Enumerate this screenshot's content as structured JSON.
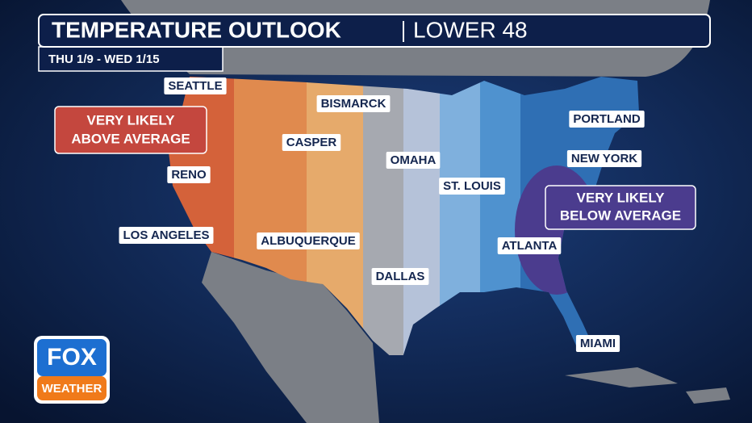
{
  "header": {
    "title": "TEMPERATURE OUTLOOK",
    "region": "LOWER 48",
    "dates": "THU 1/9 - WED 1/15"
  },
  "callouts": {
    "above": [
      "VERY LIKELY",
      "ABOVE AVERAGE"
    ],
    "below": [
      "VERY LIKELY",
      "BELOW AVERAGE"
    ]
  },
  "cities": [
    "SEATTLE",
    "BISMARCK",
    "PORTLAND",
    "CASPER",
    "OMAHA",
    "NEW YORK",
    "RENO",
    "ST. LOUIS",
    "LOS ANGELES",
    "ALBUQUERQUE",
    "ATLANTA",
    "DALLAS",
    "MIAMI"
  ],
  "logo": {
    "brand": "FOX",
    "sub": "WEATHER"
  }
}
